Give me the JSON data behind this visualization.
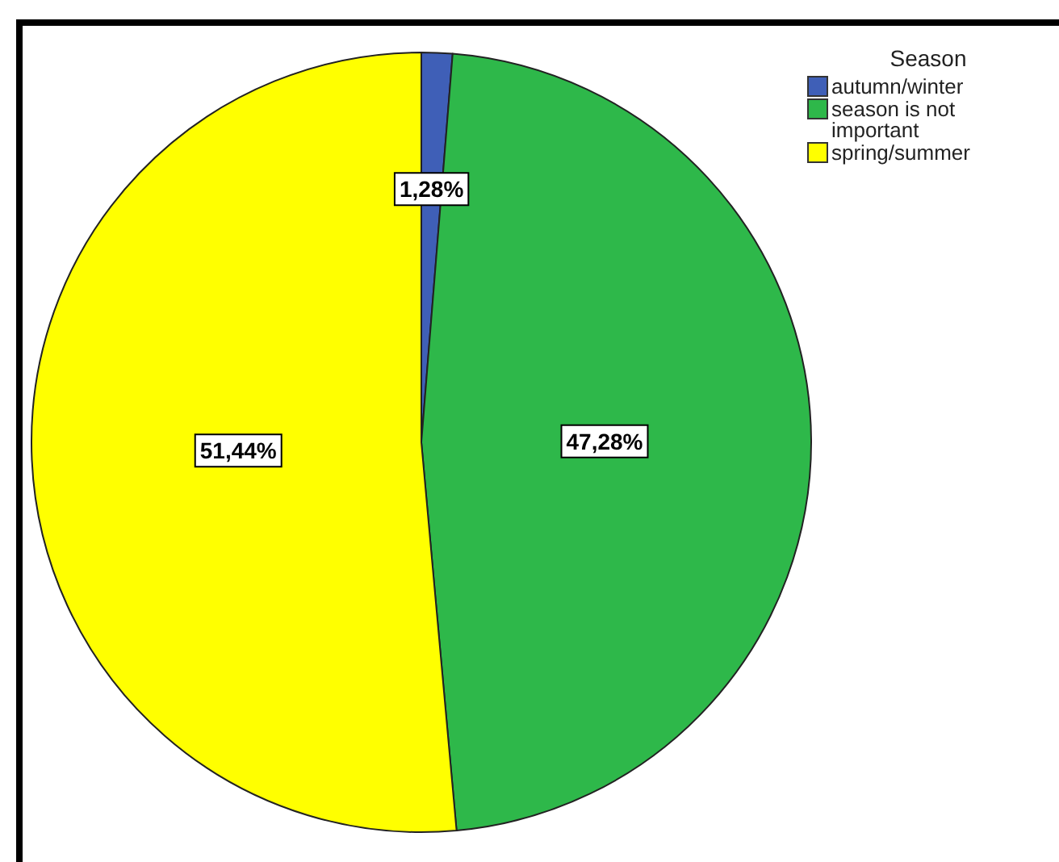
{
  "chart_data": {
    "type": "pie",
    "legend_title": "Season",
    "legend": "top right",
    "categories": [
      "autumn/winter",
      "season is not important",
      "spring/summer"
    ],
    "values": [
      1.28,
      47.28,
      51.44
    ],
    "value_labels": [
      "1,28%",
      "47,28%",
      "51,44%"
    ],
    "colors": [
      "#3f5fb7",
      "#2eb84a",
      "#ffff00"
    ]
  }
}
